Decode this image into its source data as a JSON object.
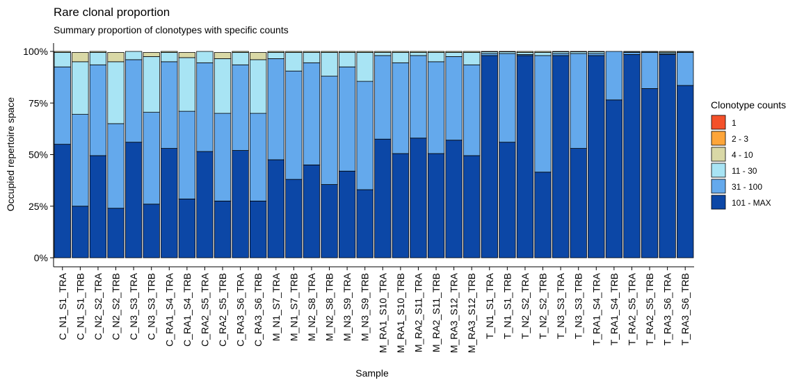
{
  "chart_data": {
    "type": "bar",
    "stacked": true,
    "title": "Rare clonal proportion",
    "subtitle": "Summary proportion of clonotypes with specific counts",
    "xlabel": "Sample",
    "ylabel": "Occupied repertoire space",
    "ylim": [
      0,
      1
    ],
    "yticks": [
      "0%",
      "25%",
      "50%",
      "75%",
      "100%"
    ],
    "ytick_values": [
      0,
      0.25,
      0.5,
      0.75,
      1
    ],
    "legend": {
      "title": "Clonotype counts",
      "placement": "right"
    },
    "categories": [
      "C_N1_S1_TRA",
      "C_N1_S1_TRB",
      "C_N2_S2_TRA",
      "C_N2_S2_TRB",
      "C_N3_S3_TRA",
      "C_N3_S3_TRB",
      "C_RA1_S4_TRA",
      "C_RA1_S4_TRB",
      "C_RA2_S5_TRA",
      "C_RA2_S5_TRB",
      "C_RA3_S6_TRA",
      "C_RA3_S6_TRB",
      "M_N1_S7_TRA",
      "M_N1_S7_TRB",
      "M_N2_S8_TRA",
      "M_N2_S8_TRB",
      "M_N3_S9_TRA",
      "M_N3_S9_TRB",
      "M_RA1_S10_TRA",
      "M_RA1_S10_TRB",
      "M_RA2_S11_TRA",
      "M_RA2_S11_TRB",
      "M_RA3_S12_TRA",
      "M_RA3_S12_TRB",
      "T_N1_S1_TRA",
      "T_N1_S1_TRB",
      "T_N2_S2_TRA",
      "T_N2_S2_TRB",
      "T_N3_S3_TRA",
      "T_N3_S3_TRB",
      "T_RA1_S4_TRA",
      "T_RA1_S4_TRB",
      "T_RA2_S5_TRA",
      "T_RA2_S5_TRB",
      "T_RA3_S6_TRA",
      "T_RA3_S6_TRB"
    ],
    "series": [
      {
        "name": "101 - MAX",
        "color": "#0C47A6",
        "values": [
          0.55,
          0.25,
          0.495,
          0.24,
          0.56,
          0.26,
          0.53,
          0.285,
          0.515,
          0.275,
          0.52,
          0.275,
          0.475,
          0.38,
          0.45,
          0.355,
          0.42,
          0.33,
          0.575,
          0.505,
          0.58,
          0.505,
          0.57,
          0.495,
          0.98,
          0.56,
          0.98,
          0.415,
          0.98,
          0.53,
          0.98,
          0.765,
          0.985,
          0.82,
          0.985,
          0.835
        ]
      },
      {
        "name": "31 - 100",
        "color": "#64A9EC",
        "values": [
          0.375,
          0.445,
          0.44,
          0.41,
          0.4,
          0.445,
          0.42,
          0.425,
          0.43,
          0.425,
          0.415,
          0.425,
          0.49,
          0.525,
          0.495,
          0.525,
          0.505,
          0.525,
          0.405,
          0.44,
          0.4,
          0.445,
          0.405,
          0.44,
          0.01,
          0.43,
          0.005,
          0.565,
          0.01,
          0.46,
          0.01,
          0.235,
          0.01,
          0.175,
          0.005,
          0.16
        ]
      },
      {
        "name": "11 - 30",
        "color": "#A8E4F4",
        "values": [
          0.07,
          0.255,
          0.06,
          0.3,
          0.04,
          0.27,
          0.045,
          0.26,
          0.055,
          0.265,
          0.06,
          0.26,
          0.03,
          0.09,
          0.05,
          0.115,
          0.07,
          0.14,
          0.015,
          0.05,
          0.015,
          0.045,
          0.02,
          0.06,
          0.008,
          0.008,
          0.01,
          0.015,
          0.008,
          0.008,
          0.008,
          0.0,
          0.004,
          0.004,
          0.006,
          0.004
        ]
      },
      {
        "name": "4 - 10",
        "color": "#D9D8A6",
        "values": [
          0.005,
          0.045,
          0.005,
          0.045,
          0.0,
          0.02,
          0.005,
          0.025,
          0.0,
          0.03,
          0.005,
          0.035,
          0.005,
          0.005,
          0.005,
          0.005,
          0.005,
          0.005,
          0.005,
          0.005,
          0.005,
          0.005,
          0.005,
          0.005,
          0.002,
          0.002,
          0.005,
          0.005,
          0.002,
          0.002,
          0.002,
          0.0,
          0.001,
          0.001,
          0.004,
          0.001
        ]
      },
      {
        "name": "2 - 3",
        "color": "#FDA53A",
        "values": [
          0,
          0,
          0,
          0,
          0,
          0,
          0,
          0,
          0,
          0,
          0,
          0,
          0,
          0,
          0,
          0,
          0,
          0,
          0,
          0,
          0,
          0,
          0,
          0,
          0,
          0,
          0,
          0,
          0,
          0,
          0,
          0,
          0,
          0,
          0,
          0
        ]
      },
      {
        "name": "1",
        "color": "#F4512A",
        "values": [
          0,
          0,
          0,
          0,
          0,
          0,
          0,
          0,
          0,
          0,
          0,
          0,
          0,
          0,
          0,
          0,
          0,
          0,
          0,
          0,
          0,
          0,
          0,
          0,
          0,
          0,
          0,
          0,
          0,
          0,
          0,
          0,
          0,
          0,
          0,
          0
        ]
      }
    ],
    "legend_order": [
      "1",
      "2 - 3",
      "4 - 10",
      "11 - 30",
      "31 - 100",
      "101 - MAX"
    ]
  }
}
